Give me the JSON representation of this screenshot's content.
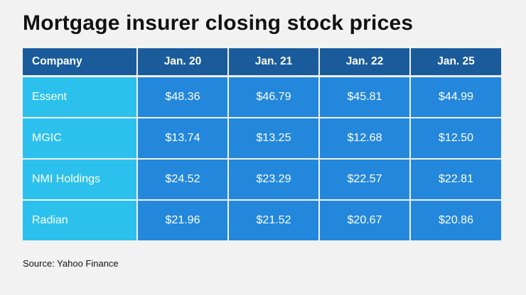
{
  "title": "Mortgage insurer closing stock prices",
  "source": "Source: Yahoo Finance",
  "colors": {
    "background": "#f2f2f2",
    "header": "#1a5b9b",
    "company_cell": "#2bc1ec",
    "value_cell": "#2388dc"
  },
  "chart_data": {
    "type": "table",
    "title": "Mortgage insurer closing stock prices",
    "columns": [
      "Company",
      "Jan. 20",
      "Jan. 21",
      "Jan. 22",
      "Jan. 25"
    ],
    "rows": [
      [
        "Essent",
        "$48.36",
        "$46.79",
        "$45.81",
        "$44.99"
      ],
      [
        "MGIC",
        "$13.74",
        "$13.25",
        "$12.68",
        "$12.50"
      ],
      [
        "NMI Holdings",
        "$24.52",
        "$23.29",
        "$22.57",
        "$22.81"
      ],
      [
        "Radian",
        "$21.96",
        "$21.52",
        "$20.67",
        "$20.86"
      ]
    ]
  }
}
